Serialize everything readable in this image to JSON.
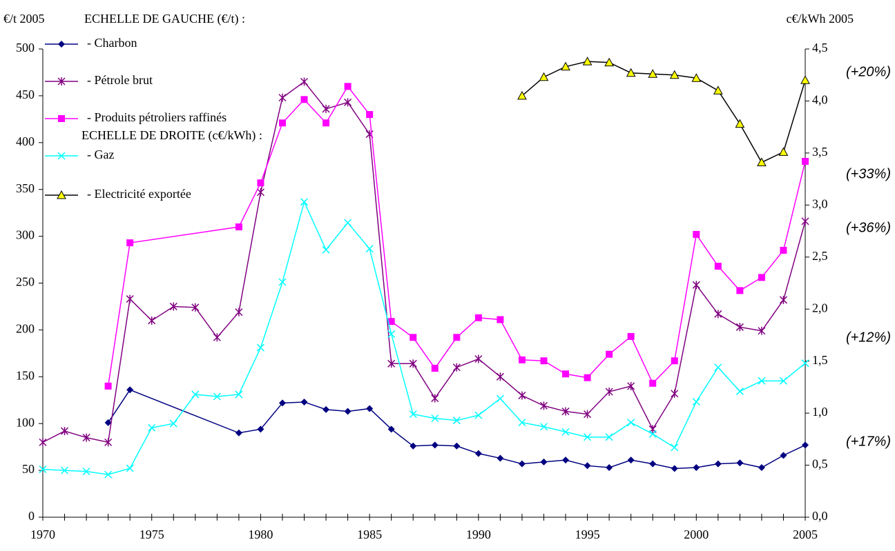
{
  "chart_data": {
    "type": "line",
    "left_unit_label": "€/t 2005",
    "right_unit_label": "c€/kWh 2005",
    "legend_left_heading": "ECHELLE DE GAUCHE (€/t) :",
    "legend_right_heading": "ECHELLE DE DROITE (c€/kWh) :",
    "xlim": [
      1970,
      2005
    ],
    "xticks": [
      1970,
      1975,
      1980,
      1985,
      1990,
      1995,
      2000,
      2005
    ],
    "xminorticks": [
      1971,
      1972,
      1973,
      1974,
      1976,
      1977,
      1978,
      1979,
      1981,
      1982,
      1983,
      1984,
      1986,
      1987,
      1988,
      1989,
      1991,
      1992,
      1993,
      1994,
      1996,
      1997,
      1998,
      1999,
      2001,
      2002,
      2003,
      2004
    ],
    "ylim": [
      0,
      500
    ],
    "yticks": [
      0,
      50,
      100,
      150,
      200,
      250,
      300,
      350,
      400,
      450,
      500
    ],
    "y2lim": [
      0,
      4.5
    ],
    "y2ticks": [
      {
        "value": 0,
        "label": "0,0"
      },
      {
        "value": 0.5,
        "label": "0,5"
      },
      {
        "value": 1,
        "label": "1,0"
      },
      {
        "value": 1.5,
        "label": "1,5"
      },
      {
        "value": 2,
        "label": "2,0"
      },
      {
        "value": 2.5,
        "label": "2,5"
      },
      {
        "value": 3,
        "label": "3,0"
      },
      {
        "value": 3.5,
        "label": "3,5"
      },
      {
        "value": 4,
        "label": "4,0"
      },
      {
        "value": 4.5,
        "label": "4,5"
      }
    ],
    "annotations": [
      "(+20%)",
      "(+33%)",
      "(+36%)",
      "(+12%)",
      "(+17%)"
    ],
    "series": [
      {
        "name": "- Charbon",
        "color": "#000080",
        "marker": "diamond",
        "x": [
          1973,
          1974,
          1979,
          1980,
          1981,
          1982,
          1983,
          1984,
          1985,
          1986,
          1987,
          1988,
          1989,
          1990,
          1991,
          1992,
          1993,
          1994,
          1995,
          1996,
          1997,
          1998,
          1999,
          2000,
          2001,
          2002,
          2003,
          2004,
          2005
        ],
        "values": [
          101,
          136,
          90,
          94,
          122,
          123,
          115,
          113,
          116,
          94,
          76,
          77,
          76,
          68,
          63,
          57,
          59,
          61,
          55,
          53,
          61,
          57,
          52,
          53,
          57,
          58,
          53,
          66,
          77
        ]
      },
      {
        "name": "- Pétrole brut",
        "color": "#800080",
        "marker": "star",
        "x": [
          1970,
          1971,
          1972,
          1973,
          1974,
          1975,
          1976,
          1977,
          1978,
          1979,
          1980,
          1981,
          1982,
          1983,
          1984,
          1985,
          1986,
          1987,
          1988,
          1989,
          1990,
          1991,
          1992,
          1993,
          1994,
          1995,
          1996,
          1997,
          1998,
          1999,
          2000,
          2001,
          2002,
          2003,
          2004,
          2005
        ],
        "values": [
          80,
          92,
          85,
          80,
          233,
          210,
          225,
          224,
          192,
          219,
          347,
          448,
          465,
          436,
          443,
          409,
          164,
          164,
          127,
          160,
          169,
          150,
          130,
          119,
          113,
          110,
          134,
          140,
          94,
          132,
          248,
          217,
          203,
          199,
          232,
          316
        ]
      },
      {
        "name": "- Produits pétroliers raffinés",
        "color": "#ff00ff",
        "marker": "square",
        "x": [
          1973,
          1974,
          1979,
          1980,
          1981,
          1982,
          1983,
          1984,
          1985,
          1986,
          1987,
          1988,
          1989,
          1990,
          1991,
          1992,
          1993,
          1994,
          1995,
          1996,
          1997,
          1998,
          1999,
          2000,
          2001,
          2002,
          2003,
          2004,
          2005
        ],
        "values": [
          140,
          293,
          310,
          357,
          421,
          446,
          421,
          460,
          430,
          209,
          192,
          159,
          192,
          213,
          211,
          168,
          167,
          153,
          149,
          174,
          193,
          143,
          167,
          302,
          268,
          242,
          256,
          285,
          380
        ]
      },
      {
        "name": "- Gaz",
        "color": "#00ffff",
        "marker": "cross",
        "axis": "y2",
        "x": [
          1970,
          1971,
          1972,
          1973,
          1974,
          1975,
          1976,
          1977,
          1978,
          1979,
          1980,
          1981,
          1982,
          1983,
          1984,
          1985,
          1986,
          1987,
          1988,
          1989,
          1990,
          1991,
          1992,
          1993,
          1994,
          1995,
          1996,
          1997,
          1998,
          1999,
          2000,
          2001,
          2002,
          2003,
          2004,
          2005
        ],
        "values": [
          0.46,
          0.45,
          0.44,
          0.41,
          0.47,
          0.86,
          0.9,
          1.18,
          1.16,
          1.18,
          1.63,
          2.26,
          3.03,
          2.57,
          2.83,
          2.58,
          1.76,
          0.99,
          0.95,
          0.93,
          0.98,
          1.14,
          0.91,
          0.87,
          0.82,
          0.77,
          0.77,
          0.91,
          0.8,
          0.67,
          1.11,
          1.44,
          1.21,
          1.31,
          1.31,
          1.48
        ]
      },
      {
        "name": "- Electricité exportée",
        "color": "#000000",
        "marker": "triangle",
        "marker_fill": "#ffff00",
        "axis": "y2",
        "x": [
          1992,
          1993,
          1994,
          1995,
          1996,
          1997,
          1998,
          1999,
          2000,
          2001,
          2002,
          2003,
          2004,
          2005
        ],
        "values": [
          4.05,
          4.23,
          4.33,
          4.38,
          4.37,
          4.27,
          4.26,
          4.25,
          4.22,
          4.1,
          3.78,
          3.41,
          3.51,
          4.2
        ]
      }
    ]
  }
}
